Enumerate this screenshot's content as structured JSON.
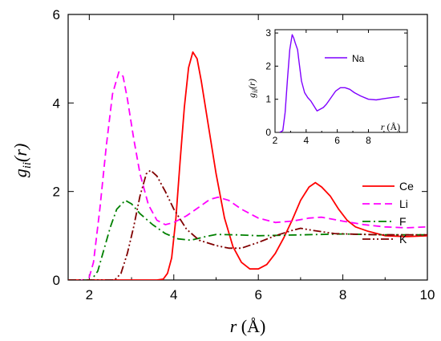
{
  "chart_data": [
    {
      "type": "line",
      "title": "",
      "xlabel_var": "r",
      "xlabel_unit": " (Å)",
      "ylabel_var": "g",
      "ylabel_sub": "ii",
      "ylabel_arg": "(r)",
      "xlim": [
        1.5,
        10
      ],
      "ylim": [
        0,
        6
      ],
      "xticks": [
        2,
        4,
        6,
        8,
        10
      ],
      "yticks": [
        0,
        2,
        4,
        6
      ],
      "legend_position": "right",
      "series": [
        {
          "name": "Ce",
          "color": "#ff0000",
          "dash": "solid",
          "points": [
            [
              1.5,
              0
            ],
            [
              3.6,
              0
            ],
            [
              3.75,
              0.02
            ],
            [
              3.85,
              0.15
            ],
            [
              3.95,
              0.5
            ],
            [
              4.05,
              1.4
            ],
            [
              4.15,
              2.7
            ],
            [
              4.25,
              3.9
            ],
            [
              4.35,
              4.8
            ],
            [
              4.45,
              5.15
            ],
            [
              4.55,
              5.0
            ],
            [
              4.65,
              4.5
            ],
            [
              4.8,
              3.6
            ],
            [
              5.0,
              2.4
            ],
            [
              5.2,
              1.4
            ],
            [
              5.4,
              0.75
            ],
            [
              5.6,
              0.4
            ],
            [
              5.8,
              0.25
            ],
            [
              6.0,
              0.25
            ],
            [
              6.2,
              0.35
            ],
            [
              6.4,
              0.6
            ],
            [
              6.6,
              0.95
            ],
            [
              6.8,
              1.35
            ],
            [
              7.0,
              1.8
            ],
            [
              7.2,
              2.1
            ],
            [
              7.35,
              2.2
            ],
            [
              7.5,
              2.1
            ],
            [
              7.7,
              1.9
            ],
            [
              7.9,
              1.6
            ],
            [
              8.1,
              1.35
            ],
            [
              8.3,
              1.2
            ],
            [
              8.6,
              1.1
            ],
            [
              9.0,
              1.0
            ],
            [
              9.5,
              0.98
            ],
            [
              10,
              1.0
            ]
          ]
        },
        {
          "name": "Li",
          "color": "#ff00ff",
          "dash": "dashed",
          "points": [
            [
              1.5,
              0
            ],
            [
              1.98,
              0
            ],
            [
              2.1,
              0.4
            ],
            [
              2.25,
              1.6
            ],
            [
              2.4,
              3.0
            ],
            [
              2.55,
              4.2
            ],
            [
              2.7,
              4.7
            ],
            [
              2.8,
              4.6
            ],
            [
              2.9,
              4.1
            ],
            [
              3.05,
              3.2
            ],
            [
              3.2,
              2.4
            ],
            [
              3.4,
              1.7
            ],
            [
              3.6,
              1.35
            ],
            [
              3.8,
              1.25
            ],
            [
              4.0,
              1.3
            ],
            [
              4.3,
              1.45
            ],
            [
              4.6,
              1.65
            ],
            [
              4.85,
              1.82
            ],
            [
              5.05,
              1.87
            ],
            [
              5.3,
              1.8
            ],
            [
              5.6,
              1.6
            ],
            [
              6.0,
              1.4
            ],
            [
              6.4,
              1.3
            ],
            [
              6.8,
              1.33
            ],
            [
              7.2,
              1.4
            ],
            [
              7.5,
              1.42
            ],
            [
              8.0,
              1.33
            ],
            [
              8.5,
              1.25
            ],
            [
              9.0,
              1.2
            ],
            [
              9.5,
              1.18
            ],
            [
              10,
              1.2
            ]
          ]
        },
        {
          "name": "F",
          "color": "#008000",
          "dash": "dashdot",
          "points": [
            [
              1.5,
              0
            ],
            [
              2.05,
              0
            ],
            [
              2.2,
              0.2
            ],
            [
              2.35,
              0.7
            ],
            [
              2.5,
              1.2
            ],
            [
              2.65,
              1.6
            ],
            [
              2.85,
              1.8
            ],
            [
              3.0,
              1.72
            ],
            [
              3.2,
              1.5
            ],
            [
              3.5,
              1.25
            ],
            [
              3.8,
              1.05
            ],
            [
              4.1,
              0.93
            ],
            [
              4.4,
              0.9
            ],
            [
              4.7,
              0.97
            ],
            [
              5.0,
              1.03
            ],
            [
              5.5,
              1.02
            ],
            [
              6.0,
              1.0
            ],
            [
              7.0,
              1.02
            ],
            [
              8.0,
              1.04
            ],
            [
              9.0,
              1.02
            ],
            [
              10,
              1.02
            ]
          ]
        },
        {
          "name": "K",
          "color": "#800000",
          "dash": "dashdotdot",
          "points": [
            [
              1.5,
              0
            ],
            [
              2.6,
              0
            ],
            [
              2.75,
              0.15
            ],
            [
              2.9,
              0.6
            ],
            [
              3.05,
              1.2
            ],
            [
              3.2,
              1.9
            ],
            [
              3.35,
              2.4
            ],
            [
              3.45,
              2.48
            ],
            [
              3.6,
              2.35
            ],
            [
              3.8,
              2.0
            ],
            [
              4.0,
              1.6
            ],
            [
              4.3,
              1.15
            ],
            [
              4.6,
              0.9
            ],
            [
              5.0,
              0.78
            ],
            [
              5.3,
              0.72
            ],
            [
              5.6,
              0.72
            ],
            [
              6.0,
              0.85
            ],
            [
              6.4,
              1.0
            ],
            [
              6.8,
              1.12
            ],
            [
              7.0,
              1.17
            ],
            [
              7.3,
              1.12
            ],
            [
              7.8,
              1.05
            ],
            [
              8.5,
              1.03
            ],
            [
              9.0,
              1.02
            ],
            [
              10,
              1.02
            ]
          ]
        }
      ]
    },
    {
      "type": "line",
      "title": "",
      "inset": true,
      "xlabel_var": "r",
      "xlabel_unit": " (Å)",
      "ylabel_var": "g",
      "ylabel_sub": "ii",
      "ylabel_arg": "(r)",
      "xlim": [
        2,
        10.5
      ],
      "ylim": [
        0,
        3.1
      ],
      "xticks": [
        2,
        4,
        6,
        8
      ],
      "yticks": [
        0,
        1,
        2,
        3
      ],
      "legend_position": "top-right",
      "series": [
        {
          "name": "Na",
          "color": "#7f00ff",
          "dash": "solid",
          "points": [
            [
              2.3,
              0
            ],
            [
              2.5,
              0.05
            ],
            [
              2.65,
              0.6
            ],
            [
              2.8,
              1.6
            ],
            [
              2.95,
              2.5
            ],
            [
              3.1,
              2.95
            ],
            [
              3.2,
              2.85
            ],
            [
              3.3,
              2.7
            ],
            [
              3.45,
              2.5
            ],
            [
              3.55,
              2.1
            ],
            [
              3.7,
              1.55
            ],
            [
              3.9,
              1.2
            ],
            [
              4.1,
              1.05
            ],
            [
              4.3,
              0.95
            ],
            [
              4.5,
              0.8
            ],
            [
              4.7,
              0.65
            ],
            [
              4.9,
              0.7
            ],
            [
              5.1,
              0.75
            ],
            [
              5.3,
              0.85
            ],
            [
              5.6,
              1.05
            ],
            [
              5.9,
              1.25
            ],
            [
              6.2,
              1.35
            ],
            [
              6.5,
              1.35
            ],
            [
              6.8,
              1.3
            ],
            [
              7.1,
              1.2
            ],
            [
              7.5,
              1.1
            ],
            [
              8.0,
              1.0
            ],
            [
              8.5,
              0.98
            ],
            [
              9.0,
              1.02
            ],
            [
              9.5,
              1.05
            ],
            [
              10,
              1.08
            ]
          ]
        }
      ]
    }
  ]
}
